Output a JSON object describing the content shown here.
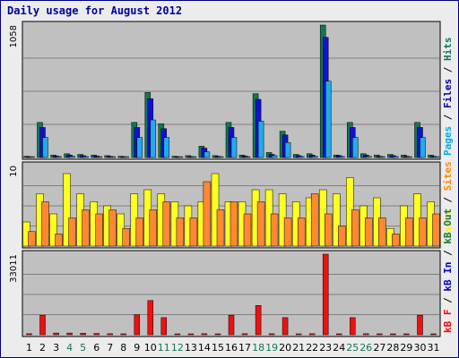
{
  "chart_data": {
    "type": "bar",
    "title": "Daily usage for August 2012",
    "x": [
      "1",
      "2",
      "3",
      "4",
      "5",
      "6",
      "7",
      "8",
      "9",
      "10",
      "11",
      "12",
      "13",
      "14",
      "15",
      "16",
      "17",
      "18",
      "19",
      "20",
      "21",
      "22",
      "23",
      "24",
      "25",
      "26",
      "27",
      "28",
      "29",
      "30",
      "31"
    ],
    "weekend_days": [
      "4",
      "5",
      "11",
      "12",
      "18",
      "19",
      "25",
      "26"
    ],
    "panels": [
      {
        "id": "hits",
        "ymax_label": "1058",
        "ymax": 1058,
        "legend": [
          {
            "text": "Pages",
            "color": "#00aaee"
          },
          {
            "text": " / ",
            "color": "#000000"
          },
          {
            "text": "Files",
            "color": "#0000aa"
          },
          {
            "text": " / ",
            "color": "#000000"
          },
          {
            "text": "Hits",
            "color": "#117755"
          }
        ],
        "series": [
          {
            "name": "Hits",
            "color": "#117755",
            "values": [
              10,
              280,
              20,
              30,
              25,
              20,
              15,
              10,
              280,
              520,
              270,
              10,
              15,
              90,
              15,
              280,
              20,
              510,
              40,
              210,
              25,
              30,
              1058,
              20,
              280,
              30,
              20,
              25,
              20,
              280,
              20
            ]
          },
          {
            "name": "Files",
            "color": "#1111cc",
            "values": [
              5,
              240,
              12,
              20,
              15,
              12,
              10,
              5,
              240,
              470,
              230,
              5,
              8,
              75,
              10,
              240,
              12,
              465,
              25,
              180,
              15,
              20,
              960,
              15,
              240,
              20,
              10,
              15,
              10,
              240,
              10
            ]
          },
          {
            "name": "Pages",
            "color": "#22aaee",
            "values": [
              3,
              160,
              8,
              10,
              8,
              6,
              5,
              3,
              160,
              300,
              160,
              3,
              5,
              45,
              5,
              160,
              6,
              290,
              15,
              120,
              8,
              10,
              610,
              8,
              160,
              10,
              5,
              8,
              5,
              160,
              5
            ]
          }
        ]
      },
      {
        "id": "visits",
        "ymax_label": "10",
        "ymax": 10,
        "legend": [
          {
            "text": "Visits",
            "color": "#ffee00"
          },
          {
            "text": " / ",
            "color": "#000000"
          },
          {
            "text": "Sites",
            "color": "#ff8800"
          }
        ],
        "series": [
          {
            "name": "Visits",
            "color": "#ffff22",
            "values": [
              3,
              6.5,
              4,
              9,
              6.5,
              5.5,
              5,
              4,
              6.5,
              7,
              6.5,
              5.5,
              5,
              5.5,
              9,
              5.5,
              5.5,
              7,
              7,
              6.5,
              5.5,
              6,
              7,
              6.5,
              8.5,
              5,
              6,
              2.2,
              5,
              6.5,
              5.5
            ]
          },
          {
            "name": "Sites",
            "color": "#ff8833",
            "values": [
              1.8,
              5.5,
              1.5,
              3.5,
              4.5,
              4,
              4.5,
              2.2,
              3.5,
              4.5,
              5.5,
              3.5,
              3.5,
              8,
              4.5,
              5.5,
              4,
              5.5,
              4,
              3.5,
              3.5,
              6.5,
              4,
              2.5,
              4.5,
              3.5,
              3.5,
              1.5,
              3.5,
              3.5,
              4
            ]
          }
        ]
      },
      {
        "id": "kbytes",
        "ymax_label": "33011",
        "ymax": 33011,
        "legend": [
          {
            "text": "kB F",
            "color": "#ff0000"
          },
          {
            "text": " / ",
            "color": "#000000"
          },
          {
            "text": "kB In",
            "color": "#0000cc"
          },
          {
            "text": " / ",
            "color": "#000000"
          },
          {
            "text": "kB Out",
            "color": "#117755"
          }
        ],
        "series": [
          {
            "name": "kB F",
            "color": "#ee1111",
            "values": [
              400,
              8000,
              700,
              700,
              600,
              500,
              400,
              300,
              8200,
              14000,
              7000,
              300,
              300,
              400,
              300,
              8000,
              400,
              12000,
              400,
              7000,
              300,
              400,
              33011,
              300,
              7000,
              400,
              300,
              300,
              300,
              8000,
              300
            ]
          }
        ]
      }
    ]
  }
}
